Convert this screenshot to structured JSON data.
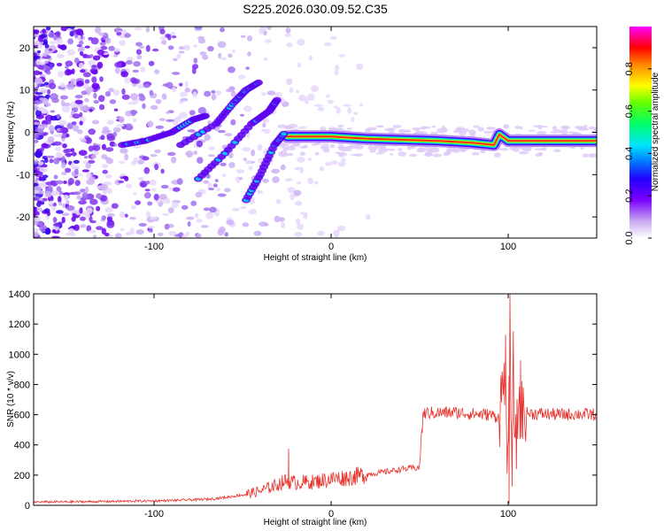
{
  "title": "S225.2026.030.09.52.C35",
  "colors": {
    "snr_line": "#e8322d",
    "frame": "#000000",
    "spectro_bg": "#ffffff"
  },
  "chart_data": [
    {
      "type": "heatmap",
      "name": "spectrogram",
      "xlabel": "Height of straight line (km)",
      "ylabel": "Frequency (Hz)",
      "xlim": [
        -168,
        150
      ],
      "ylim": [
        -25,
        25
      ],
      "xticks": [
        -100,
        0,
        100
      ],
      "yticks": [
        -20,
        -10,
        0,
        10,
        20
      ],
      "tracks": [
        {
          "label": "main-band",
          "points": [
            [
              -25,
              -1
            ],
            [
              0,
              -1
            ],
            [
              20,
              -1.5
            ],
            [
              60,
              -2
            ],
            [
              80,
              -2.5
            ],
            [
              92,
              -3
            ],
            [
              95,
              -0.5
            ],
            [
              100,
              -2
            ],
            [
              150,
              -2
            ]
          ]
        },
        {
          "label": "left-cluster",
          "points": [
            [
              -118,
              -3
            ],
            [
              -105,
              -2
            ],
            [
              -90,
              0
            ],
            [
              -78,
              3
            ],
            [
              -70,
              4
            ]
          ]
        },
        {
          "label": "streak-a",
          "points": [
            [
              -85,
              -3
            ],
            [
              -65,
              2
            ],
            [
              -55,
              7
            ],
            [
              -48,
              10
            ],
            [
              -40,
              12
            ]
          ]
        },
        {
          "label": "streak-b",
          "points": [
            [
              -75,
              -11
            ],
            [
              -60,
              -5
            ],
            [
              -45,
              2
            ],
            [
              -35,
              5
            ],
            [
              -30,
              8
            ]
          ]
        },
        {
          "label": "streak-c",
          "points": [
            [
              -48,
              -16
            ],
            [
              -40,
              -10
            ],
            [
              -32,
              -3
            ],
            [
              -26,
              0
            ]
          ]
        }
      ]
    },
    {
      "type": "colorbar",
      "name": "colorbar",
      "label": "Normalized spectral amplitude",
      "range": [
        0,
        1
      ],
      "ticks": [
        "0.0",
        "0.2",
        "0.4",
        "0.6",
        "0.8"
      ],
      "tick_values": [
        0.0,
        0.2,
        0.4,
        0.6,
        0.8
      ]
    },
    {
      "type": "line",
      "name": "snr",
      "xlabel": "Height of straight line (km)",
      "ylabel": "SNR (10 * v/v)",
      "xlim": [
        -168,
        150
      ],
      "ylim": [
        0,
        1400
      ],
      "xticks": [
        -100,
        0,
        100
      ],
      "yticks": [
        0,
        200,
        400,
        600,
        800,
        1000,
        1200,
        1400
      ],
      "series": [
        {
          "x": [
            -168,
            -140,
            -110,
            -90,
            -70,
            -60,
            -50,
            -40,
            -32,
            -26,
            -20,
            -10,
            0,
            10,
            20,
            30,
            40,
            50,
            51,
            52,
            53,
            60,
            70,
            80,
            90,
            95,
            98,
            100,
            101,
            102,
            103,
            104,
            106,
            108,
            110,
            120,
            130,
            140,
            150
          ],
          "y": [
            22,
            24,
            28,
            32,
            40,
            52,
            70,
            95,
            130,
            160,
            150,
            155,
            175,
            185,
            205,
            220,
            240,
            250,
            480,
            600,
            610,
            612,
            615,
            605,
            600,
            580,
            900,
            50,
            1400,
            60,
            1000,
            300,
            700,
            600,
            610,
            605,
            600,
            605,
            600
          ],
          "events": [
            {
              "x": -24,
              "y": 375
            },
            {
              "x": 51.5,
              "y": 480
            },
            {
              "x": 98.5,
              "y": 1130
            },
            {
              "x": 101,
              "y": 1400
            },
            {
              "x": 100.5,
              "y": 10
            },
            {
              "x": 107,
              "y": 960
            }
          ]
        }
      ]
    }
  ]
}
